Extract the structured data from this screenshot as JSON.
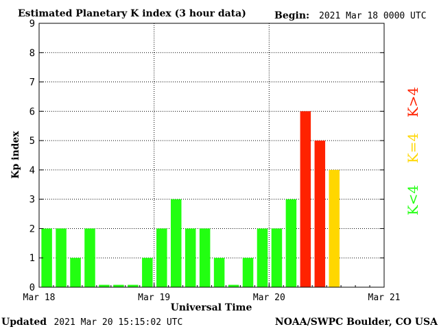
{
  "header": {
    "title": "Estimated Planetary K index (3 hour data)",
    "begin_label": "Begin:",
    "begin_value": "2021 Mar 18 0000 UTC"
  },
  "footer": {
    "updated_label": "Updated",
    "updated_value": "2021 Mar 20 15:15:02 UTC",
    "source": "NOAA/SWPC Boulder, CO USA"
  },
  "side_legend": {
    "low": "K<4",
    "mid": "K=4",
    "high": "K>4"
  },
  "chart_data": {
    "type": "bar",
    "title": "Estimated Planetary K index (3 hour data)",
    "xlabel": "Universal Time",
    "ylabel": "Kp index",
    "ylim": [
      0,
      9
    ],
    "yticks": [
      0,
      1,
      2,
      3,
      4,
      5,
      6,
      7,
      8,
      9
    ],
    "xtick_labels": [
      "Mar 18",
      "Mar 19",
      "Mar 20",
      "Mar 21"
    ],
    "bar_slots_total": 24,
    "values": [
      2,
      2,
      1,
      2,
      0,
      0,
      0,
      1,
      2,
      3,
      2,
      2,
      1,
      0,
      1,
      2,
      2,
      3,
      6,
      5,
      4
    ],
    "colors": {
      "below_4": "#22ff11",
      "equal_4": "#ffd700",
      "above_4": "#ff2200"
    },
    "grid": true
  }
}
